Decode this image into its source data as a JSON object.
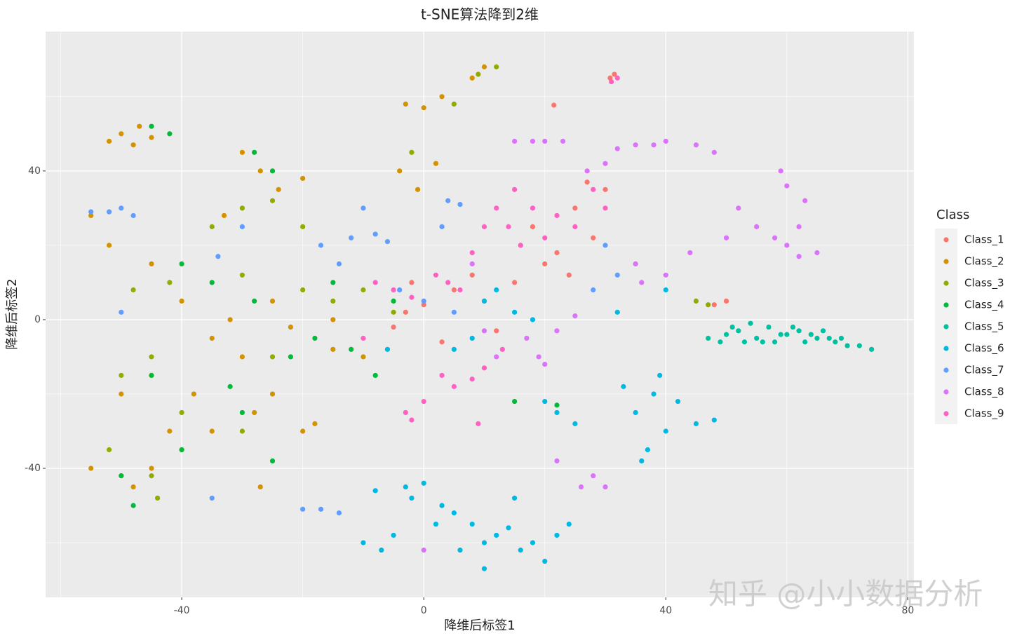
{
  "chart_data": {
    "type": "scatter",
    "title": "t-SNE算法降到2维",
    "xlabel": "降维后标签1",
    "ylabel": "降维后标签2",
    "legend_title": "Class",
    "legend_position": "right",
    "grid": true,
    "background": "#ebebeb",
    "watermark": "知乎 @小小数据分析",
    "xlim": [
      -62.5,
      81
    ],
    "ylim": [
      -74.7,
      77.5
    ],
    "xticks": [
      -40,
      0,
      40,
      80
    ],
    "yticks": [
      -40,
      0,
      40
    ],
    "x_minor_ticks": [
      -60,
      -20,
      20,
      60
    ],
    "y_minor_ticks": [
      -60,
      -20,
      20,
      60
    ],
    "series": [
      {
        "name": "Class_1",
        "color": "#F8766D",
        "x": [
          30.8,
          31.5,
          21.5,
          25,
          22,
          15,
          10,
          5,
          0,
          -3,
          28,
          30,
          27,
          20,
          -5,
          12,
          8,
          18,
          35,
          -2,
          48,
          50,
          3,
          16,
          24
        ],
        "y": [
          65,
          66,
          57.7,
          30,
          18,
          10,
          5,
          8,
          4,
          2,
          22,
          35,
          37,
          15,
          -2,
          -3,
          12,
          25,
          15,
          10,
          4,
          5,
          -6,
          20,
          12
        ]
      },
      {
        "name": "Class_2",
        "color": "#D39200",
        "x": [
          -50,
          -47,
          -45,
          -48,
          -52,
          -30,
          -27,
          -24,
          -20,
          -33,
          0,
          3,
          8,
          10,
          -3,
          -4,
          -1,
          2,
          -55,
          -52,
          -45,
          -40,
          -35,
          -30,
          -28,
          -25,
          -20,
          -18,
          -35,
          -42,
          -45,
          -48,
          -50,
          -38,
          -32,
          -25,
          -22,
          -15,
          -10,
          -45,
          -50,
          -55,
          -27,
          -15,
          -40
        ],
        "y": [
          50,
          52,
          49,
          47,
          48,
          45,
          40,
          35,
          38,
          28,
          57,
          60,
          65,
          68,
          58,
          40,
          35,
          42,
          28,
          20,
          15,
          5,
          -5,
          -10,
          -25,
          -20,
          -30,
          -28,
          -30,
          -30,
          -40,
          -45,
          -42,
          -20,
          0,
          5,
          -2,
          -8,
          -10,
          -15,
          -20,
          -40,
          -45,
          0,
          -35
        ]
      },
      {
        "name": "Class_3",
        "color": "#93AA00",
        "x": [
          -48,
          -42,
          -30,
          -20,
          -15,
          -50,
          -45,
          -40,
          -30,
          -25,
          -45,
          -52,
          -30,
          -25,
          -20,
          5,
          9,
          12,
          -35,
          -10,
          45,
          47,
          -44,
          -2,
          -5
        ],
        "y": [
          8,
          10,
          12,
          8,
          5,
          -15,
          -10,
          -25,
          -30,
          -10,
          -42,
          -35,
          30,
          32,
          25,
          58,
          66,
          68,
          25,
          8,
          5,
          4,
          -48,
          45,
          2
        ]
      },
      {
        "name": "Class_4",
        "color": "#00BA38",
        "x": [
          -45,
          -42,
          -28,
          -25,
          -40,
          -35,
          -28,
          -22,
          -18,
          -30,
          -40,
          -50,
          -45,
          -12,
          -8,
          -5,
          -15,
          -32,
          22,
          15,
          -48,
          -25
        ],
        "y": [
          52,
          50,
          45,
          40,
          15,
          10,
          5,
          -10,
          -5,
          -25,
          -35,
          -42,
          -15,
          -8,
          -15,
          5,
          10,
          -18,
          -23,
          -22,
          -50,
          -38
        ]
      },
      {
        "name": "Class_5",
        "color": "#00C19F",
        "x": [
          47,
          50,
          52,
          55,
          57,
          58,
          60,
          62,
          63,
          65,
          66,
          68,
          70,
          72,
          74,
          54,
          56,
          61,
          67,
          49,
          51,
          53,
          59,
          64,
          69
        ],
        "y": [
          -5,
          -4,
          -3,
          -5,
          -2,
          -6,
          -4,
          -3,
          -6,
          -5,
          -3,
          -6,
          -7,
          -7,
          -8,
          -1,
          -6,
          -2,
          -5,
          -6,
          -2,
          -6,
          -4,
          -4,
          -5
        ]
      },
      {
        "name": "Class_6",
        "color": "#00B9E3",
        "x": [
          -10,
          -7,
          -5,
          -3,
          -2,
          0,
          3,
          5,
          8,
          10,
          12,
          14,
          16,
          18,
          20,
          22,
          24,
          10,
          6,
          2,
          15,
          -8,
          35,
          38,
          40,
          37,
          42,
          45,
          33,
          39,
          36,
          22,
          25,
          20,
          10,
          12,
          15,
          8,
          18,
          32,
          40,
          5,
          -6,
          48
        ],
        "y": [
          -60,
          -62,
          -58,
          -45,
          -48,
          -44,
          -50,
          -52,
          -55,
          -60,
          -58,
          -56,
          -62,
          -60,
          -65,
          -58,
          -55,
          -67,
          -62,
          -55,
          -48,
          -46,
          -25,
          -20,
          -30,
          -35,
          -22,
          -28,
          -18,
          -15,
          -38,
          -25,
          -28,
          -22,
          5,
          8,
          2,
          -5,
          0,
          2,
          8,
          -8,
          -8,
          -27
        ]
      },
      {
        "name": "Class_7",
        "color": "#619CFF",
        "x": [
          -55,
          -52,
          -50,
          -48,
          -34,
          -17,
          -12,
          -10,
          -8,
          -6,
          -14,
          -4,
          0,
          3,
          4,
          6,
          -30,
          -50,
          -35,
          -20,
          -17,
          -14,
          30,
          28,
          32,
          5
        ],
        "y": [
          29,
          29,
          30,
          28,
          17,
          20,
          22,
          30,
          23,
          21,
          15,
          8,
          5,
          25,
          32,
          31,
          25,
          2,
          -48,
          -51,
          -51,
          -52,
          20,
          8,
          12,
          2
        ]
      },
      {
        "name": "Class_8",
        "color": "#DB72FB",
        "x": [
          15,
          18,
          20,
          23,
          27,
          30,
          32,
          35,
          38,
          40,
          45,
          48,
          52,
          55,
          58,
          60,
          62,
          50,
          44,
          40,
          35,
          59,
          60,
          63,
          65,
          62,
          17,
          19,
          20,
          22,
          25,
          10,
          12,
          28,
          30,
          26,
          22,
          0,
          8,
          36
        ],
        "y": [
          48,
          48,
          48,
          48,
          40,
          42,
          46,
          47,
          47,
          48,
          47,
          45,
          30,
          25,
          22,
          20,
          25,
          22,
          18,
          12,
          15,
          40,
          36,
          32,
          18,
          17,
          -5,
          -10,
          -12,
          -3,
          1,
          -3,
          -10,
          -42,
          -45,
          -45,
          -38,
          -62,
          15,
          10
        ]
      },
      {
        "name": "Class_9",
        "color": "#FF61C3",
        "x": [
          31,
          32,
          12,
          15,
          18,
          14,
          16,
          20,
          22,
          25,
          8,
          10,
          4,
          2,
          -2,
          -5,
          -8,
          6,
          3,
          5,
          8,
          10,
          -3,
          -2,
          0,
          9,
          13,
          -10,
          28,
          30
        ],
        "y": [
          64,
          65,
          30,
          35,
          30,
          25,
          20,
          22,
          28,
          25,
          18,
          25,
          10,
          12,
          6,
          8,
          10,
          8,
          -15,
          -18,
          -16,
          -13,
          -25,
          -27,
          -22,
          -28,
          -8,
          -5,
          35,
          30
        ]
      }
    ]
  }
}
